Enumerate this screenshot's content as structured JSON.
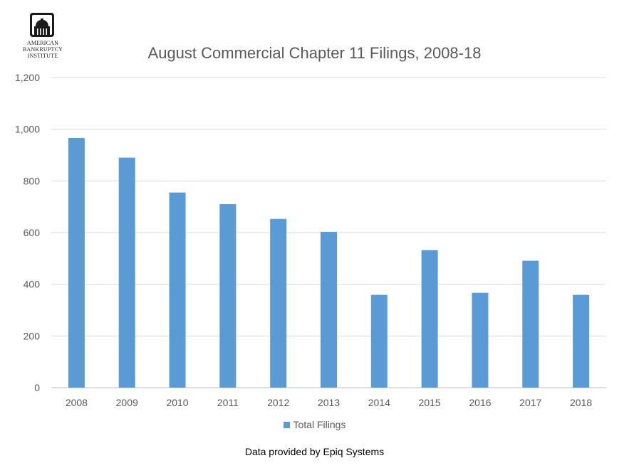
{
  "logo": {
    "icon": "capitol-dome-icon",
    "line1": "AMERICAN",
    "line2": "BANKRUPTCY",
    "line3": "INSTITUTE"
  },
  "footer": {
    "source": "Data provided by Epiq Systems"
  },
  "colors": {
    "bar": "#5b9bd5",
    "grid": "#d9d9d9",
    "text": "#595959"
  },
  "chart_data": {
    "type": "bar",
    "title": "August Commercial Chapter 11 Filings, 2008-18",
    "xlabel": "",
    "ylabel": "",
    "categories": [
      "2008",
      "2009",
      "2010",
      "2011",
      "2012",
      "2013",
      "2014",
      "2015",
      "2016",
      "2017",
      "2018"
    ],
    "series": [
      {
        "name": "Total Filings",
        "values": [
          966,
          890,
          755,
          710,
          653,
          603,
          359,
          532,
          367,
          491,
          359
        ]
      }
    ],
    "ylim": [
      0,
      1200
    ],
    "yticks": [
      "0",
      "200",
      "400",
      "600",
      "800",
      "1,000",
      "1,200"
    ],
    "grid": true,
    "legend": "bottom"
  }
}
